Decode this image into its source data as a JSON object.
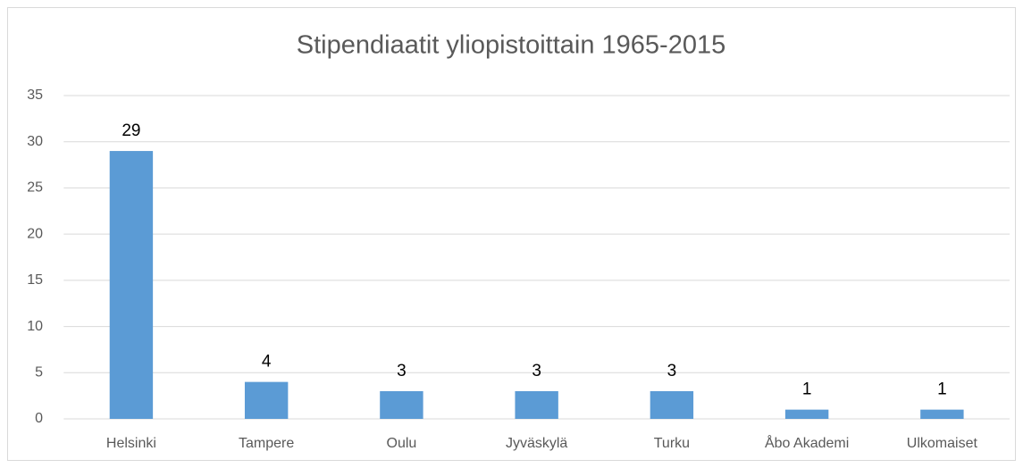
{
  "chart_data": {
    "type": "bar",
    "title": "Stipendiaatit yliopistoittain 1965-2015",
    "categories": [
      "Helsinki",
      "Tampere",
      "Oulu",
      "Jyväskylä",
      "Turku",
      "Åbo Akademi",
      "Ulkomaiset"
    ],
    "values": [
      29,
      4,
      3,
      3,
      3,
      1,
      1
    ],
    "color": "#5b9bd5",
    "ylim": [
      0,
      35
    ],
    "yticks": [
      0,
      5,
      10,
      15,
      20,
      25,
      30,
      35
    ],
    "grid": true
  }
}
